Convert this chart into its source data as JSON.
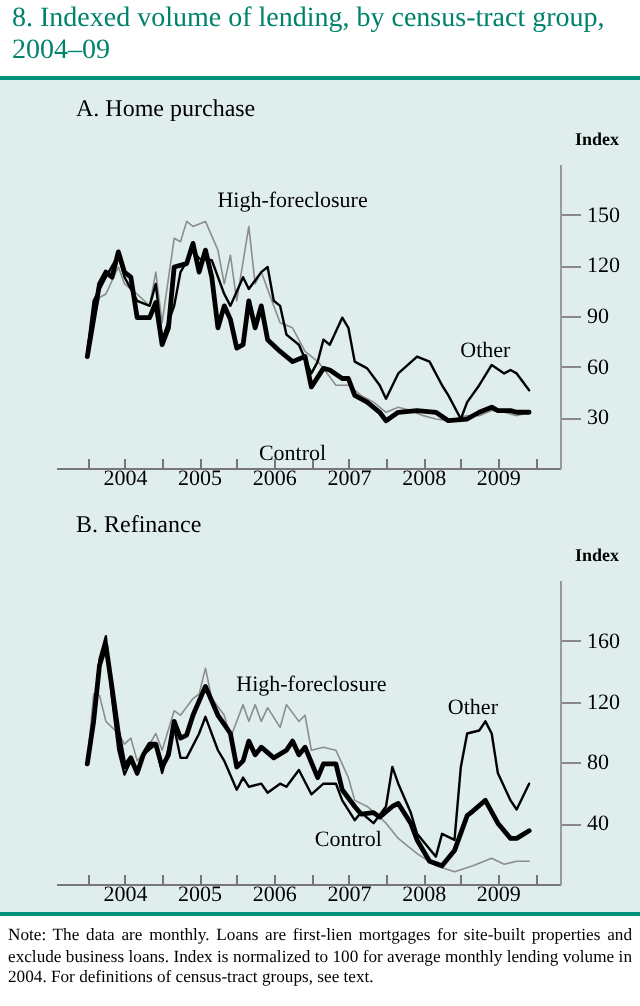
{
  "chart_data": [
    {
      "type": "line",
      "title": "8. Indexed volume of lending, by census-tract group, 2004–09",
      "subtitle": "A. Home purchase",
      "ylabel": "Index",
      "xlim": [
        "2003-08",
        "2010-05"
      ],
      "xticks": [
        {
          "value": "2004-01",
          "label": null
        },
        {
          "value": "2004-07",
          "label": "2004"
        },
        {
          "value": "2005-01",
          "label": null
        },
        {
          "value": "2005-07",
          "label": "2005"
        },
        {
          "value": "2006-01",
          "label": null
        },
        {
          "value": "2006-07",
          "label": "2006"
        },
        {
          "value": "2007-01",
          "label": null
        },
        {
          "value": "2007-07",
          "label": "2007"
        },
        {
          "value": "2008-01",
          "label": null
        },
        {
          "value": "2008-07",
          "label": "2008"
        },
        {
          "value": "2009-01",
          "label": null
        },
        {
          "value": "2009-07",
          "label": "2009"
        },
        {
          "value": "2010-01",
          "label": null
        }
      ],
      "ylim": [
        0,
        180
      ],
      "yticks": [
        30,
        60,
        90,
        120,
        150
      ],
      "line_style": "solid",
      "series": [
        {
          "name": "High-foreclosure",
          "color": "#8c8c8c",
          "x": [
            "2004-01",
            "2004-03",
            "2004-04",
            "2004-06",
            "2004-07",
            "2004-09",
            "2004-11",
            "2004-12",
            "2005-01",
            "2005-03",
            "2005-04",
            "2005-05",
            "2005-06",
            "2005-08",
            "2005-10",
            "2005-11",
            "2005-12",
            "2006-01",
            "2006-03",
            "2006-04",
            "2006-05",
            "2006-07",
            "2006-08",
            "2006-10",
            "2006-12",
            "2007-02",
            "2007-03",
            "2007-05",
            "2007-07",
            "2007-09",
            "2007-11",
            "2008-01",
            "2008-03",
            "2008-05",
            "2008-07",
            "2008-09",
            "2008-11",
            "2009-02",
            "2009-04",
            "2009-06",
            "2009-08",
            "2009-10",
            "2009-12"
          ],
          "values": [
            73,
            101,
            103,
            119,
            109,
            103,
            96,
            116,
            86,
            136,
            134,
            146,
            143,
            146,
            129,
            109,
            126,
            99,
            143,
            109,
            116,
            96,
            86,
            83,
            69,
            63,
            59,
            49,
            49,
            43,
            39,
            33,
            36,
            34,
            31,
            29,
            28,
            31,
            31,
            34,
            33,
            31,
            33
          ]
        },
        {
          "name": "Other",
          "color": "#000000",
          "x": [
            "2004-01",
            "2004-02",
            "2004-04",
            "2004-06",
            "2004-07",
            "2004-09",
            "2004-11",
            "2004-12",
            "2005-01",
            "2005-03",
            "2005-04",
            "2005-06",
            "2005-07",
            "2005-09",
            "2005-11",
            "2005-12",
            "2006-02",
            "2006-03",
            "2006-05",
            "2006-06",
            "2006-07",
            "2006-08",
            "2006-09",
            "2006-11",
            "2007-01",
            "2007-02",
            "2007-03",
            "2007-04",
            "2007-06",
            "2007-07",
            "2007-08",
            "2007-10",
            "2007-12",
            "2008-01",
            "2008-03",
            "2008-06",
            "2008-08",
            "2008-10",
            "2008-11",
            "2009-01",
            "2009-02",
            "2009-04",
            "2009-06",
            "2009-08",
            "2009-09",
            "2009-10",
            "2009-12"
          ],
          "values": [
            69,
            99,
            113,
            126,
            113,
            99,
            96,
            109,
            76,
            96,
            116,
            129,
            124,
            123,
            103,
            96,
            113,
            106,
            116,
            119,
            99,
            96,
            79,
            73,
            56,
            63,
            76,
            73,
            89,
            83,
            63,
            59,
            49,
            41,
            56,
            66,
            63,
            49,
            43,
            29,
            39,
            49,
            61,
            56,
            58,
            56,
            46
          ]
        },
        {
          "name": "Control",
          "color": "#000000",
          "x": [
            "2004-01",
            "2004-03",
            "2004-04",
            "2004-05",
            "2004-06",
            "2004-07",
            "2004-08",
            "2004-09",
            "2004-11",
            "2004-12",
            "2005-01",
            "2005-02",
            "2005-03",
            "2005-05",
            "2005-06",
            "2005-07",
            "2005-08",
            "2005-09",
            "2005-10",
            "2005-11",
            "2005-12",
            "2006-01",
            "2006-02",
            "2006-03",
            "2006-04",
            "2006-05",
            "2006-06",
            "2006-08",
            "2006-10",
            "2006-12",
            "2007-01",
            "2007-03",
            "2007-04",
            "2007-06",
            "2007-07",
            "2007-08",
            "2007-10",
            "2007-12",
            "2008-01",
            "2008-03",
            "2008-06",
            "2008-09",
            "2008-11",
            "2009-02",
            "2009-04",
            "2009-06",
            "2009-07",
            "2009-09",
            "2009-10",
            "2009-12"
          ],
          "values": [
            66,
            109,
            116,
            113,
            128,
            116,
            113,
            89,
            89,
            98,
            73,
            83,
            119,
            121,
            133,
            116,
            129,
            113,
            83,
            96,
            88,
            71,
            73,
            99,
            83,
            96,
            76,
            69,
            63,
            66,
            48,
            59,
            58,
            53,
            53,
            43,
            39,
            33,
            28,
            33,
            34,
            33,
            28,
            29,
            33,
            36,
            34,
            34,
            33,
            33
          ]
        }
      ]
    },
    {
      "type": "line",
      "subtitle": "B. Refinance",
      "ylabel": "Index",
      "xlim": [
        "2003-08",
        "2010-05"
      ],
      "xticks": [
        {
          "value": "2004-01",
          "label": null
        },
        {
          "value": "2004-07",
          "label": "2004"
        },
        {
          "value": "2005-01",
          "label": null
        },
        {
          "value": "2005-07",
          "label": "2005"
        },
        {
          "value": "2006-01",
          "label": null
        },
        {
          "value": "2006-07",
          "label": "2006"
        },
        {
          "value": "2007-01",
          "label": null
        },
        {
          "value": "2007-07",
          "label": "2007"
        },
        {
          "value": "2008-01",
          "label": null
        },
        {
          "value": "2008-07",
          "label": "2008"
        },
        {
          "value": "2009-01",
          "label": null
        },
        {
          "value": "2009-07",
          "label": "2009"
        },
        {
          "value": "2010-01",
          "label": null
        }
      ],
      "ylim": [
        0,
        200
      ],
      "yticks": [
        40,
        80,
        120,
        160
      ],
      "line_style": "solid",
      "annotations": [
        "Note: The data are monthly. Loans are first-lien mortgages for site-built properties and exclude business loans. Index is normalized to 100 for average monthly lending volume in 2004. For definitions of census-tract groups, see text."
      ],
      "series": [
        {
          "name": "High-foreclosure",
          "color": "#8c8c8c",
          "x": [
            "2004-01",
            "2004-02",
            "2004-03",
            "2004-04",
            "2004-06",
            "2004-07",
            "2004-08",
            "2004-09",
            "2004-11",
            "2004-12",
            "2005-01",
            "2005-03",
            "2005-04",
            "2005-06",
            "2005-07",
            "2005-08",
            "2005-09",
            "2005-11",
            "2005-12",
            "2006-02",
            "2006-03",
            "2006-04",
            "2006-05",
            "2006-06",
            "2006-08",
            "2006-09",
            "2006-11",
            "2006-12",
            "2007-01",
            "2007-03",
            "2007-05",
            "2007-07",
            "2007-08",
            "2007-10",
            "2007-12",
            "2008-01",
            "2008-03",
            "2008-06",
            "2008-09",
            "2008-12",
            "2009-03",
            "2009-06",
            "2009-08",
            "2009-10",
            "2009-12"
          ],
          "values": [
            79,
            125,
            124,
            107,
            99,
            92,
            96,
            81,
            92,
            99,
            88,
            114,
            111,
            122,
            125,
            142,
            122,
            111,
            96,
            118,
            107,
            118,
            107,
            116,
            103,
            118,
            107,
            111,
            88,
            90,
            88,
            70,
            55,
            51,
            44,
            40,
            30,
            20,
            12,
            8,
            12,
            17,
            13,
            15,
            15
          ]
        },
        {
          "name": "Other",
          "color": "#000000",
          "x": [
            "2004-01",
            "2004-02",
            "2004-03",
            "2004-04",
            "2004-05",
            "2004-06",
            "2004-07",
            "2004-08",
            "2004-09",
            "2004-10",
            "2004-12",
            "2005-01",
            "2005-03",
            "2005-04",
            "2005-05",
            "2005-07",
            "2005-08",
            "2005-10",
            "2005-11",
            "2006-01",
            "2006-02",
            "2006-03",
            "2006-05",
            "2006-06",
            "2006-08",
            "2006-09",
            "2006-11",
            "2007-01",
            "2007-03",
            "2007-05",
            "2007-06",
            "2007-08",
            "2007-09",
            "2007-11",
            "2008-01",
            "2008-02",
            "2008-03",
            "2008-05",
            "2008-06",
            "2008-08",
            "2008-09",
            "2008-10",
            "2008-12",
            "2009-01",
            "2009-02",
            "2009-04",
            "2009-05",
            "2009-06",
            "2009-07",
            "2009-09",
            "2009-10",
            "2009-12"
          ],
          "values": [
            79,
            107,
            148,
            163,
            122,
            88,
            72,
            81,
            72,
            85,
            92,
            73,
            103,
            83,
            83,
            99,
            110,
            88,
            81,
            62,
            70,
            64,
            66,
            60,
            66,
            64,
            75,
            59,
            66,
            66,
            55,
            42,
            47,
            40,
            51,
            77,
            66,
            47,
            33,
            23,
            18,
            33,
            29,
            77,
            99,
            101,
            107,
            99,
            73,
            55,
            49,
            66
          ]
        },
        {
          "name": "Control",
          "color": "#000000",
          "x": [
            "2004-01",
            "2004-02",
            "2004-03",
            "2004-04",
            "2004-05",
            "2004-06",
            "2004-07",
            "2004-08",
            "2004-09",
            "2004-10",
            "2004-11",
            "2004-12",
            "2005-01",
            "2005-02",
            "2005-03",
            "2005-04",
            "2005-05",
            "2005-06",
            "2005-08",
            "2005-10",
            "2005-11",
            "2005-12",
            "2006-01",
            "2006-02",
            "2006-03",
            "2006-04",
            "2006-05",
            "2006-07",
            "2006-09",
            "2006-10",
            "2006-11",
            "2006-12",
            "2007-02",
            "2007-03",
            "2007-05",
            "2007-06",
            "2007-08",
            "2007-09",
            "2007-11",
            "2007-12",
            "2008-02",
            "2008-03",
            "2008-05",
            "2008-06",
            "2008-08",
            "2008-10",
            "2008-12",
            "2009-02",
            "2009-03",
            "2009-05",
            "2009-07",
            "2009-09",
            "2009-10",
            "2009-12"
          ],
          "values": [
            79,
            107,
            144,
            157,
            129,
            99,
            77,
            83,
            73,
            85,
            92,
            92,
            77,
            85,
            107,
            96,
            98,
            111,
            130,
            111,
            105,
            99,
            77,
            81,
            94,
            85,
            90,
            83,
            88,
            94,
            85,
            90,
            70,
            79,
            79,
            62,
            51,
            46,
            47,
            44,
            51,
            53,
            40,
            29,
            15,
            12,
            22,
            45,
            48,
            55,
            40,
            30,
            30,
            35
          ]
        }
      ]
    }
  ]
}
